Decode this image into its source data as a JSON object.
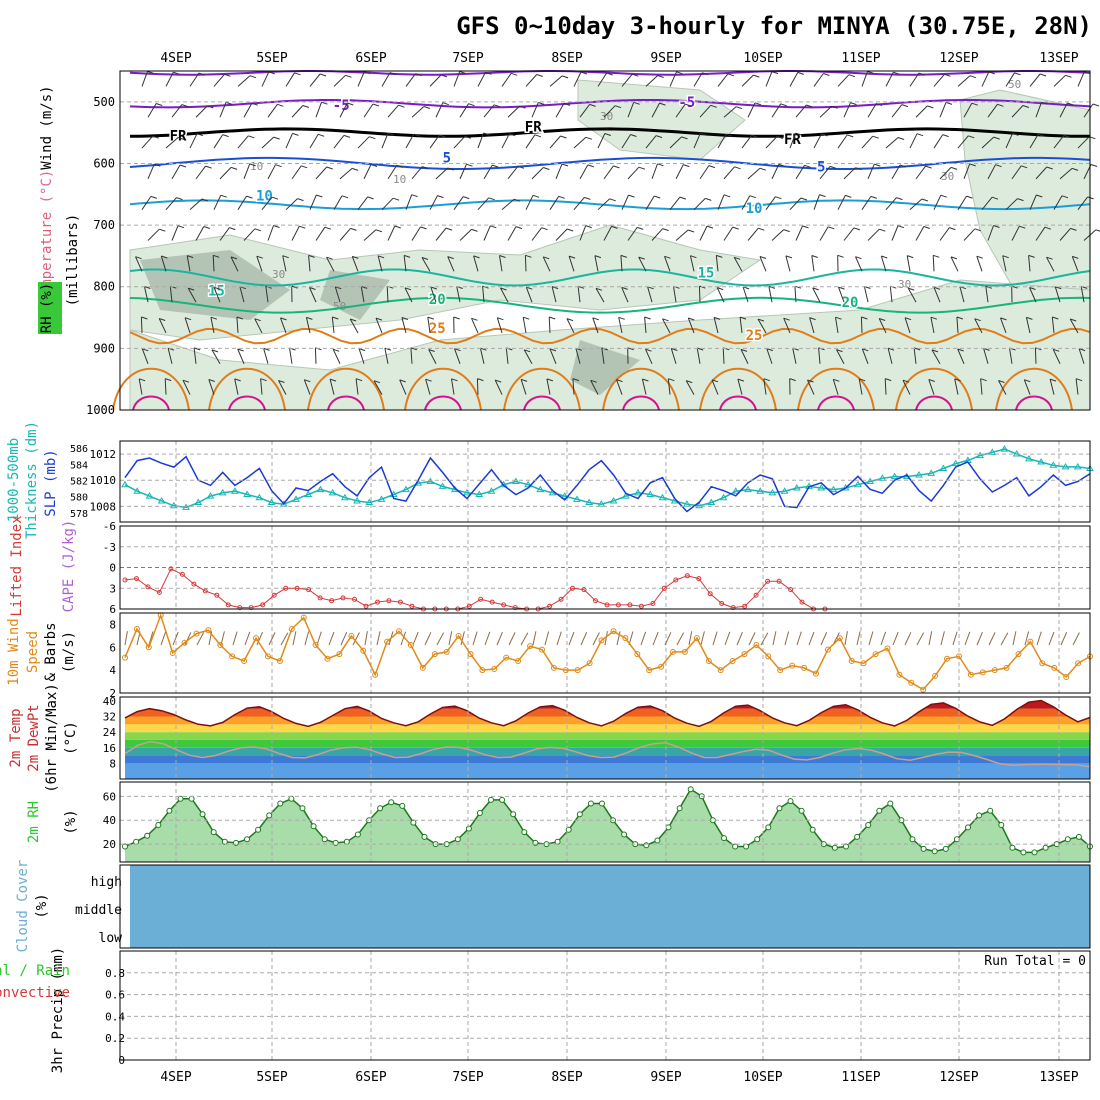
{
  "title": "GFS 0~10day 3-hourly for MINYA (30.75E, 28N)",
  "dates": [
    "4SEP",
    "5SEP",
    "6SEP",
    "7SEP",
    "8SEP",
    "9SEP",
    "10SEP",
    "11SEP",
    "12SEP",
    "13SEP"
  ],
  "colors": {
    "wind_barb": "#000000",
    "temp_warm": "#e07c1a",
    "temp_hot": "#d4148e",
    "temp_mid": "#1ab5a0",
    "temp_cool": "#1a9ed4",
    "temp_cold": "#1a4fd4",
    "temp_freeze": "#7a1ac8",
    "slp": "#1a3ad4",
    "thickness": "#1ab5b5",
    "lifted_index": "#d43a3a",
    "wind_speed": "#e08a1a",
    "rh_fill": "#2ec82e",
    "cloud": "#6baed6",
    "precip": "#2ec82e"
  },
  "chart_data": [
    {
      "type": "line",
      "name": "upper-air cross-section",
      "ylabels": [
        "Temperature",
        "(°C)",
        "Wind",
        "(m/s)"
      ],
      "ylabel_rh": "RH (%)",
      "ylabel_units": "(millibars)",
      "yticks": [
        500,
        600,
        700,
        800,
        900,
        1000
      ],
      "ylim": [
        450,
        1000
      ],
      "isotherm_labels": [
        {
          "text": "-5",
          "t": 0.22,
          "p": 505
        },
        {
          "text": "-5",
          "t": 0.58,
          "p": 500
        },
        {
          "text": "FR",
          "t": 0.05,
          "p": 555
        },
        {
          "text": "FR",
          "t": 0.42,
          "p": 540
        },
        {
          "text": "FR",
          "t": 0.69,
          "p": 560
        },
        {
          "text": "5",
          "t": 0.33,
          "p": 590
        },
        {
          "text": "5",
          "t": 0.72,
          "p": 605
        },
        {
          "text": "10",
          "t": 0.14,
          "p": 652
        },
        {
          "text": "10",
          "t": 0.65,
          "p": 672
        },
        {
          "text": "15",
          "t": 0.09,
          "p": 806
        },
        {
          "text": "15",
          "t": 0.6,
          "p": 777
        },
        {
          "text": "20",
          "t": 0.32,
          "p": 820
        },
        {
          "text": "20",
          "t": 0.75,
          "p": 825
        },
        {
          "text": "25",
          "t": 0.32,
          "p": 867
        },
        {
          "text": "25",
          "t": 0.65,
          "p": 878
        }
      ],
      "rh_labels": [
        "30",
        "10",
        "30",
        "50",
        "30",
        "50",
        "30",
        "10"
      ]
    },
    {
      "type": "line",
      "name": "SLP and thickness",
      "ylabel_left": [
        "1000-500mb",
        "Thickness (dm)"
      ],
      "ylabel_right": "SLP (mb)",
      "thickness_ticks": [
        578,
        580,
        582,
        584,
        586
      ],
      "slp_ticks": [
        1008,
        1010,
        1012
      ],
      "series": [
        {
          "name": "SLP (mb)",
          "values": [
            1010.2,
            1011.5,
            1011.7,
            1011.3,
            1011.0,
            1011.8,
            1010.0,
            1009.6,
            1010.6,
            1009.6,
            1010.2,
            1010.9,
            1009.2,
            1008.2,
            1009.4,
            1009.2,
            1009.9,
            1010.5,
            1009.5,
            1008.8,
            1010.2,
            1011.0,
            1008.6,
            1008.4,
            1010.0,
            1011.7,
            1010.6,
            1009.4,
            1008.6,
            1009.7,
            1010.8,
            1009.6,
            1008.9,
            1009.4,
            1010.4,
            1009.2,
            1008.5,
            1009.6,
            1010.8,
            1011.5,
            1010.4,
            1009.0,
            1008.6,
            1009.8,
            1010.2,
            1008.6,
            1007.6,
            1008.3,
            1009.5,
            1009.2,
            1008.8,
            1009.8,
            1010.4,
            1010.1,
            1008.0,
            1007.9,
            1009.5,
            1009.8,
            1008.9,
            1009.4,
            1010.3,
            1009.3,
            1009.0,
            1010.0,
            1010.4,
            1009.2,
            1008.4,
            1009.6,
            1011.0,
            1011.4,
            1010.1,
            1009.1,
            1009.6,
            1010.2,
            1008.8,
            1009.5,
            1010.4,
            1009.6,
            1009.9,
            1010.5
          ]
        },
        {
          "name": "Thickness (dm)",
          "values": [
            581.6,
            580.8,
            580.2,
            579.6,
            579.0,
            578.8,
            579.4,
            580.2,
            580.6,
            580.8,
            580.4,
            580.0,
            579.4,
            579.2,
            579.8,
            580.4,
            581.0,
            580.6,
            580.0,
            579.6,
            579.4,
            579.8,
            580.4,
            581.0,
            581.8,
            582.0,
            581.4,
            581.0,
            580.6,
            580.4,
            580.8,
            581.6,
            582.0,
            581.6,
            581.0,
            580.6,
            580.2,
            579.8,
            579.4,
            579.2,
            579.6,
            580.2,
            580.6,
            580.4,
            580.0,
            579.6,
            579.2,
            579.0,
            579.4,
            580.0,
            580.8,
            581.0,
            580.8,
            580.6,
            580.8,
            581.2,
            581.4,
            581.2,
            581.0,
            581.2,
            581.6,
            582.0,
            582.4,
            582.6,
            582.6,
            582.8,
            583.0,
            583.6,
            584.2,
            584.6,
            585.2,
            585.6,
            586.0,
            585.4,
            584.8,
            584.4,
            584.0,
            583.8,
            583.8,
            583.6
          ]
        }
      ]
    },
    {
      "type": "line",
      "name": "Lifted index and CAPE",
      "ylabel_left": "Lifted Index",
      "ylabel_right": "CAPE (J/kg)",
      "yticks": [
        -6,
        -3,
        0,
        3,
        6
      ],
      "ylim": [
        -6,
        6
      ],
      "series": [
        {
          "name": "Lifted Index",
          "values": [
            1.8,
            1.6,
            2.8,
            3.6,
            0.2,
            1.0,
            2.4,
            3.4,
            4.0,
            5.4,
            5.8,
            5.8,
            5.4,
            4.0,
            3.0,
            3.0,
            3.2,
            4.4,
            4.8,
            4.4,
            4.6,
            5.6,
            5.0,
            4.8,
            5.0,
            5.6,
            6.0,
            6.0,
            6.0,
            6.0,
            5.6,
            4.6,
            5.0,
            5.4,
            5.8,
            6.0,
            6.0,
            5.6,
            4.6,
            3.0,
            3.2,
            4.8,
            5.4,
            5.4,
            5.4,
            5.6,
            5.2,
            3.0,
            1.8,
            1.2,
            1.6,
            3.8,
            5.2,
            5.8,
            5.6,
            4.0,
            2.0,
            2.0,
            3.2,
            5.0,
            6.0,
            6.0
          ]
        }
      ]
    },
    {
      "type": "line",
      "name": "10m wind speed",
      "ylabel": [
        "10m Wind",
        "Speed",
        "& Barbs",
        "(m/s)"
      ],
      "yticks": [
        2,
        4,
        6,
        8
      ],
      "ylim": [
        2,
        9
      ],
      "series": [
        {
          "name": "Wind speed",
          "values": [
            5.1,
            7.6,
            6.0,
            8.8,
            5.5,
            6.4,
            7.2,
            7.5,
            6.2,
            5.2,
            4.8,
            6.8,
            5.2,
            4.8,
            7.6,
            8.6,
            6.2,
            5.0,
            5.4,
            7.0,
            5.7,
            3.6,
            6.5,
            7.4,
            6.2,
            4.2,
            5.4,
            5.6,
            7.0,
            5.4,
            4.0,
            4.1,
            5.1,
            4.8,
            6.1,
            5.8,
            4.2,
            4.0,
            4.0,
            4.6,
            6.6,
            7.4,
            6.8,
            5.4,
            4.0,
            4.3,
            5.6,
            5.6,
            6.8,
            4.8,
            4.0,
            4.8,
            5.4,
            6.2,
            5.2,
            4.0,
            4.4,
            4.2,
            3.7,
            5.8,
            6.8,
            4.8,
            4.6,
            5.4,
            5.9,
            3.6,
            2.9,
            2.3,
            3.5,
            5.0,
            5.2,
            3.6,
            3.8,
            4.0,
            4.2,
            5.4,
            6.5,
            4.6,
            4.2,
            3.4,
            4.6,
            5.2
          ]
        }
      ]
    },
    {
      "type": "line",
      "name": "2m temperature and dewpoint",
      "ylabel": [
        "2m Temp",
        "2m DewPt",
        "(6hr Min/Max)",
        "(°C)"
      ],
      "yticks": [
        8,
        16,
        24,
        32,
        40
      ],
      "ylim": [
        0,
        42
      ],
      "series": [
        {
          "name": "2m Temp (°C)",
          "values": [
            31.3,
            34.5,
            36.0,
            35.0,
            33.0,
            30.2,
            28.0,
            27.2,
            29.0,
            33.0,
            36.3,
            37.0,
            34.5,
            31.0,
            28.5,
            27.0,
            29.0,
            32.5,
            36.0,
            37.2,
            34.8,
            31.0,
            28.8,
            27.3,
            29.3,
            33.3,
            36.6,
            37.3,
            35.0,
            31.2,
            28.8,
            27.3,
            29.8,
            33.8,
            37.0,
            37.6,
            35.2,
            31.5,
            28.8,
            27.2,
            29.6,
            33.6,
            36.8,
            37.4,
            35.0,
            31.2,
            28.6,
            27.0,
            29.5,
            33.8,
            37.3,
            37.8,
            35.0,
            31.3,
            28.8,
            27.3,
            30.0,
            34.0,
            37.2,
            38.0,
            35.4,
            31.6,
            28.8,
            27.2,
            30.0,
            34.4,
            38.2,
            39.0,
            36.2,
            32.2,
            29.2,
            27.5,
            30.8,
            35.6,
            39.4,
            40.2,
            37.0,
            32.8,
            29.3,
            31.5
          ]
        },
        {
          "name": "2m DewPt (°C)",
          "values": [
            13.0,
            17.3,
            19.2,
            18.0,
            15.0,
            12.2,
            11.0,
            12.0,
            14.2,
            16.0,
            16.4,
            15.4,
            13.0,
            11.0,
            10.8,
            12.5,
            14.8,
            16.0,
            16.3,
            15.0,
            12.8,
            11.0,
            11.2,
            13.0,
            15.2,
            16.4,
            16.2,
            14.6,
            12.4,
            11.0,
            11.2,
            13.2,
            15.4,
            16.2,
            15.8,
            14.0,
            12.0,
            11.0,
            11.2,
            13.4,
            16.2,
            18.0,
            18.6,
            16.4,
            13.4,
            11.0,
            11.0,
            12.5,
            14.0,
            15.2,
            14.8,
            12.4,
            10.2,
            9.8,
            11.0,
            13.2,
            15.0,
            15.6,
            14.8,
            12.8,
            10.4,
            9.6,
            11.0,
            12.6,
            13.8,
            13.6,
            12.0,
            10.0,
            7.8,
            7.0,
            7.4,
            7.6,
            7.5,
            7.3,
            7.2,
            6.2
          ]
        }
      ]
    },
    {
      "type": "area",
      "name": "2m relative humidity",
      "ylabel": "2m RH",
      "ylabel_units": "(%)",
      "yticks": [
        20,
        40,
        60
      ],
      "ylim": [
        5,
        72
      ],
      "series": [
        {
          "name": "2m RH (%)",
          "values": [
            18,
            22,
            27,
            36,
            48,
            58,
            58,
            45,
            30,
            22,
            21,
            24,
            32,
            44,
            54,
            58,
            50,
            35,
            24,
            21,
            22,
            28,
            40,
            50,
            55,
            52,
            38,
            26,
            20,
            20,
            24,
            33,
            46,
            57,
            57,
            45,
            30,
            21,
            20,
            22,
            32,
            45,
            54,
            54,
            40,
            28,
            20,
            19,
            23,
            34,
            50,
            66,
            60,
            40,
            25,
            18,
            18,
            24,
            34,
            50,
            56,
            48,
            32,
            20,
            17,
            18,
            26,
            36,
            48,
            54,
            40,
            24,
            16,
            14,
            16,
            24,
            34,
            44,
            48,
            36,
            17,
            13,
            13,
            17,
            20,
            24,
            26,
            18
          ]
        }
      ]
    },
    {
      "type": "area",
      "name": "cloud cover",
      "ylabel": "Cloud Cover",
      "ylabel_units": "(%)",
      "levels": [
        "high",
        "middle",
        "low"
      ],
      "series": [
        {
          "name": "high",
          "values": []
        },
        {
          "name": "middle",
          "values": []
        },
        {
          "name": "low",
          "values": []
        }
      ]
    },
    {
      "type": "bar",
      "name": "3hr precipitation",
      "ylabel": "3hr Precip (mm)",
      "ylabel_legend": [
        "Total / Rain",
        "Convective"
      ],
      "yticks": [
        0,
        0.2,
        0.4,
        0.6,
        0.8
      ],
      "ylim": [
        0,
        1.0
      ],
      "run_total": "Run Total = 0",
      "series": [
        {
          "name": "Total",
          "values": []
        },
        {
          "name": "Convective",
          "values": []
        }
      ]
    }
  ]
}
